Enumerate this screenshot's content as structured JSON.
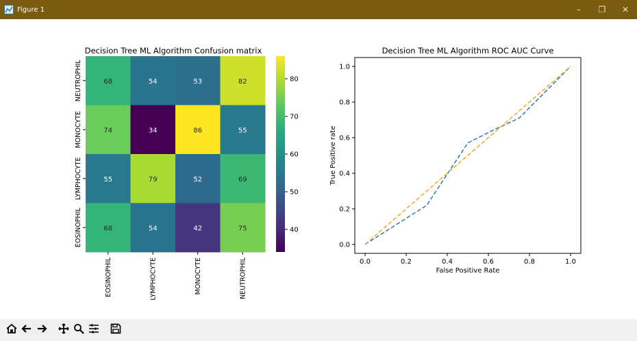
{
  "window": {
    "title": "Figure 1",
    "controls": {
      "minimize": "–",
      "restore": "❐",
      "close": "✕"
    }
  },
  "heatmap": {
    "title": "Decision Tree ML Algorithm Confusion matrix",
    "row_labels": [
      "NEUTROPHIL",
      "MONOCYTE",
      "LYMPHOCYTE",
      "EOSINOPHIL"
    ],
    "col_labels": [
      "EOSINOPHIL",
      "LYMPHOCYTE",
      "MONOCYTE",
      "NEUTROPHIL"
    ],
    "values": [
      [
        68,
        54,
        53,
        82
      ],
      [
        74,
        34,
        86,
        55
      ],
      [
        55,
        79,
        52,
        69
      ],
      [
        68,
        54,
        42,
        75
      ]
    ],
    "colorbar_ticks": [
      "80",
      "70",
      "60",
      "50",
      "40"
    ],
    "colorbar_range": [
      34,
      86
    ],
    "colormap": "viridis"
  },
  "roc": {
    "title": "Decision Tree ML Algorithm ROC AUC Curve",
    "xlabel": "False Positive Rate",
    "ylabel": "True Positive rate",
    "xticks": [
      "0.0",
      "0.2",
      "0.4",
      "0.6",
      "0.8",
      "1.0"
    ],
    "yticks": [
      "0.0",
      "0.2",
      "0.4",
      "0.6",
      "0.8",
      "1.0"
    ],
    "xlim": [
      -0.05,
      1.05
    ],
    "ylim": [
      -0.05,
      1.05
    ]
  },
  "chart_data": [
    {
      "type": "heatmap",
      "title": "Decision Tree ML Algorithm Confusion matrix",
      "rows": [
        "NEUTROPHIL",
        "MONOCYTE",
        "LYMPHOCYTE",
        "EOSINOPHIL"
      ],
      "columns": [
        "EOSINOPHIL",
        "LYMPHOCYTE",
        "MONOCYTE",
        "NEUTROPHIL"
      ],
      "values": [
        [
          68,
          54,
          53,
          82
        ],
        [
          74,
          34,
          86,
          55
        ],
        [
          55,
          79,
          52,
          69
        ],
        [
          68,
          54,
          42,
          75
        ]
      ],
      "colorbar_ticks": [
        80,
        70,
        60,
        50,
        40
      ],
      "colormap": "viridis"
    },
    {
      "type": "line",
      "title": "Decision Tree ML Algorithm ROC AUC Curve",
      "xlabel": "False Positive Rate",
      "ylabel": "True Positive rate",
      "xlim": [
        -0.05,
        1.05
      ],
      "ylim": [
        -0.05,
        1.05
      ],
      "grid": false,
      "series": [
        {
          "color": "#2a7ab9",
          "style": "dashed",
          "x": [
            0.0,
            0.3,
            0.5,
            0.62,
            0.75,
            1.0
          ],
          "y": [
            0.0,
            0.22,
            0.57,
            0.64,
            0.71,
            1.0
          ]
        },
        {
          "color": "#f5a623",
          "style": "dashed",
          "x": [
            0.0,
            1.0
          ],
          "y": [
            0.0,
            1.0
          ]
        }
      ]
    }
  ],
  "toolbar": {
    "buttons": [
      {
        "name": "home-icon"
      },
      {
        "name": "back-icon"
      },
      {
        "name": "forward-icon"
      },
      {
        "name": "pan-icon"
      },
      {
        "name": "zoom-icon"
      },
      {
        "name": "configure-subplots-icon"
      },
      {
        "name": "save-icon"
      }
    ]
  }
}
